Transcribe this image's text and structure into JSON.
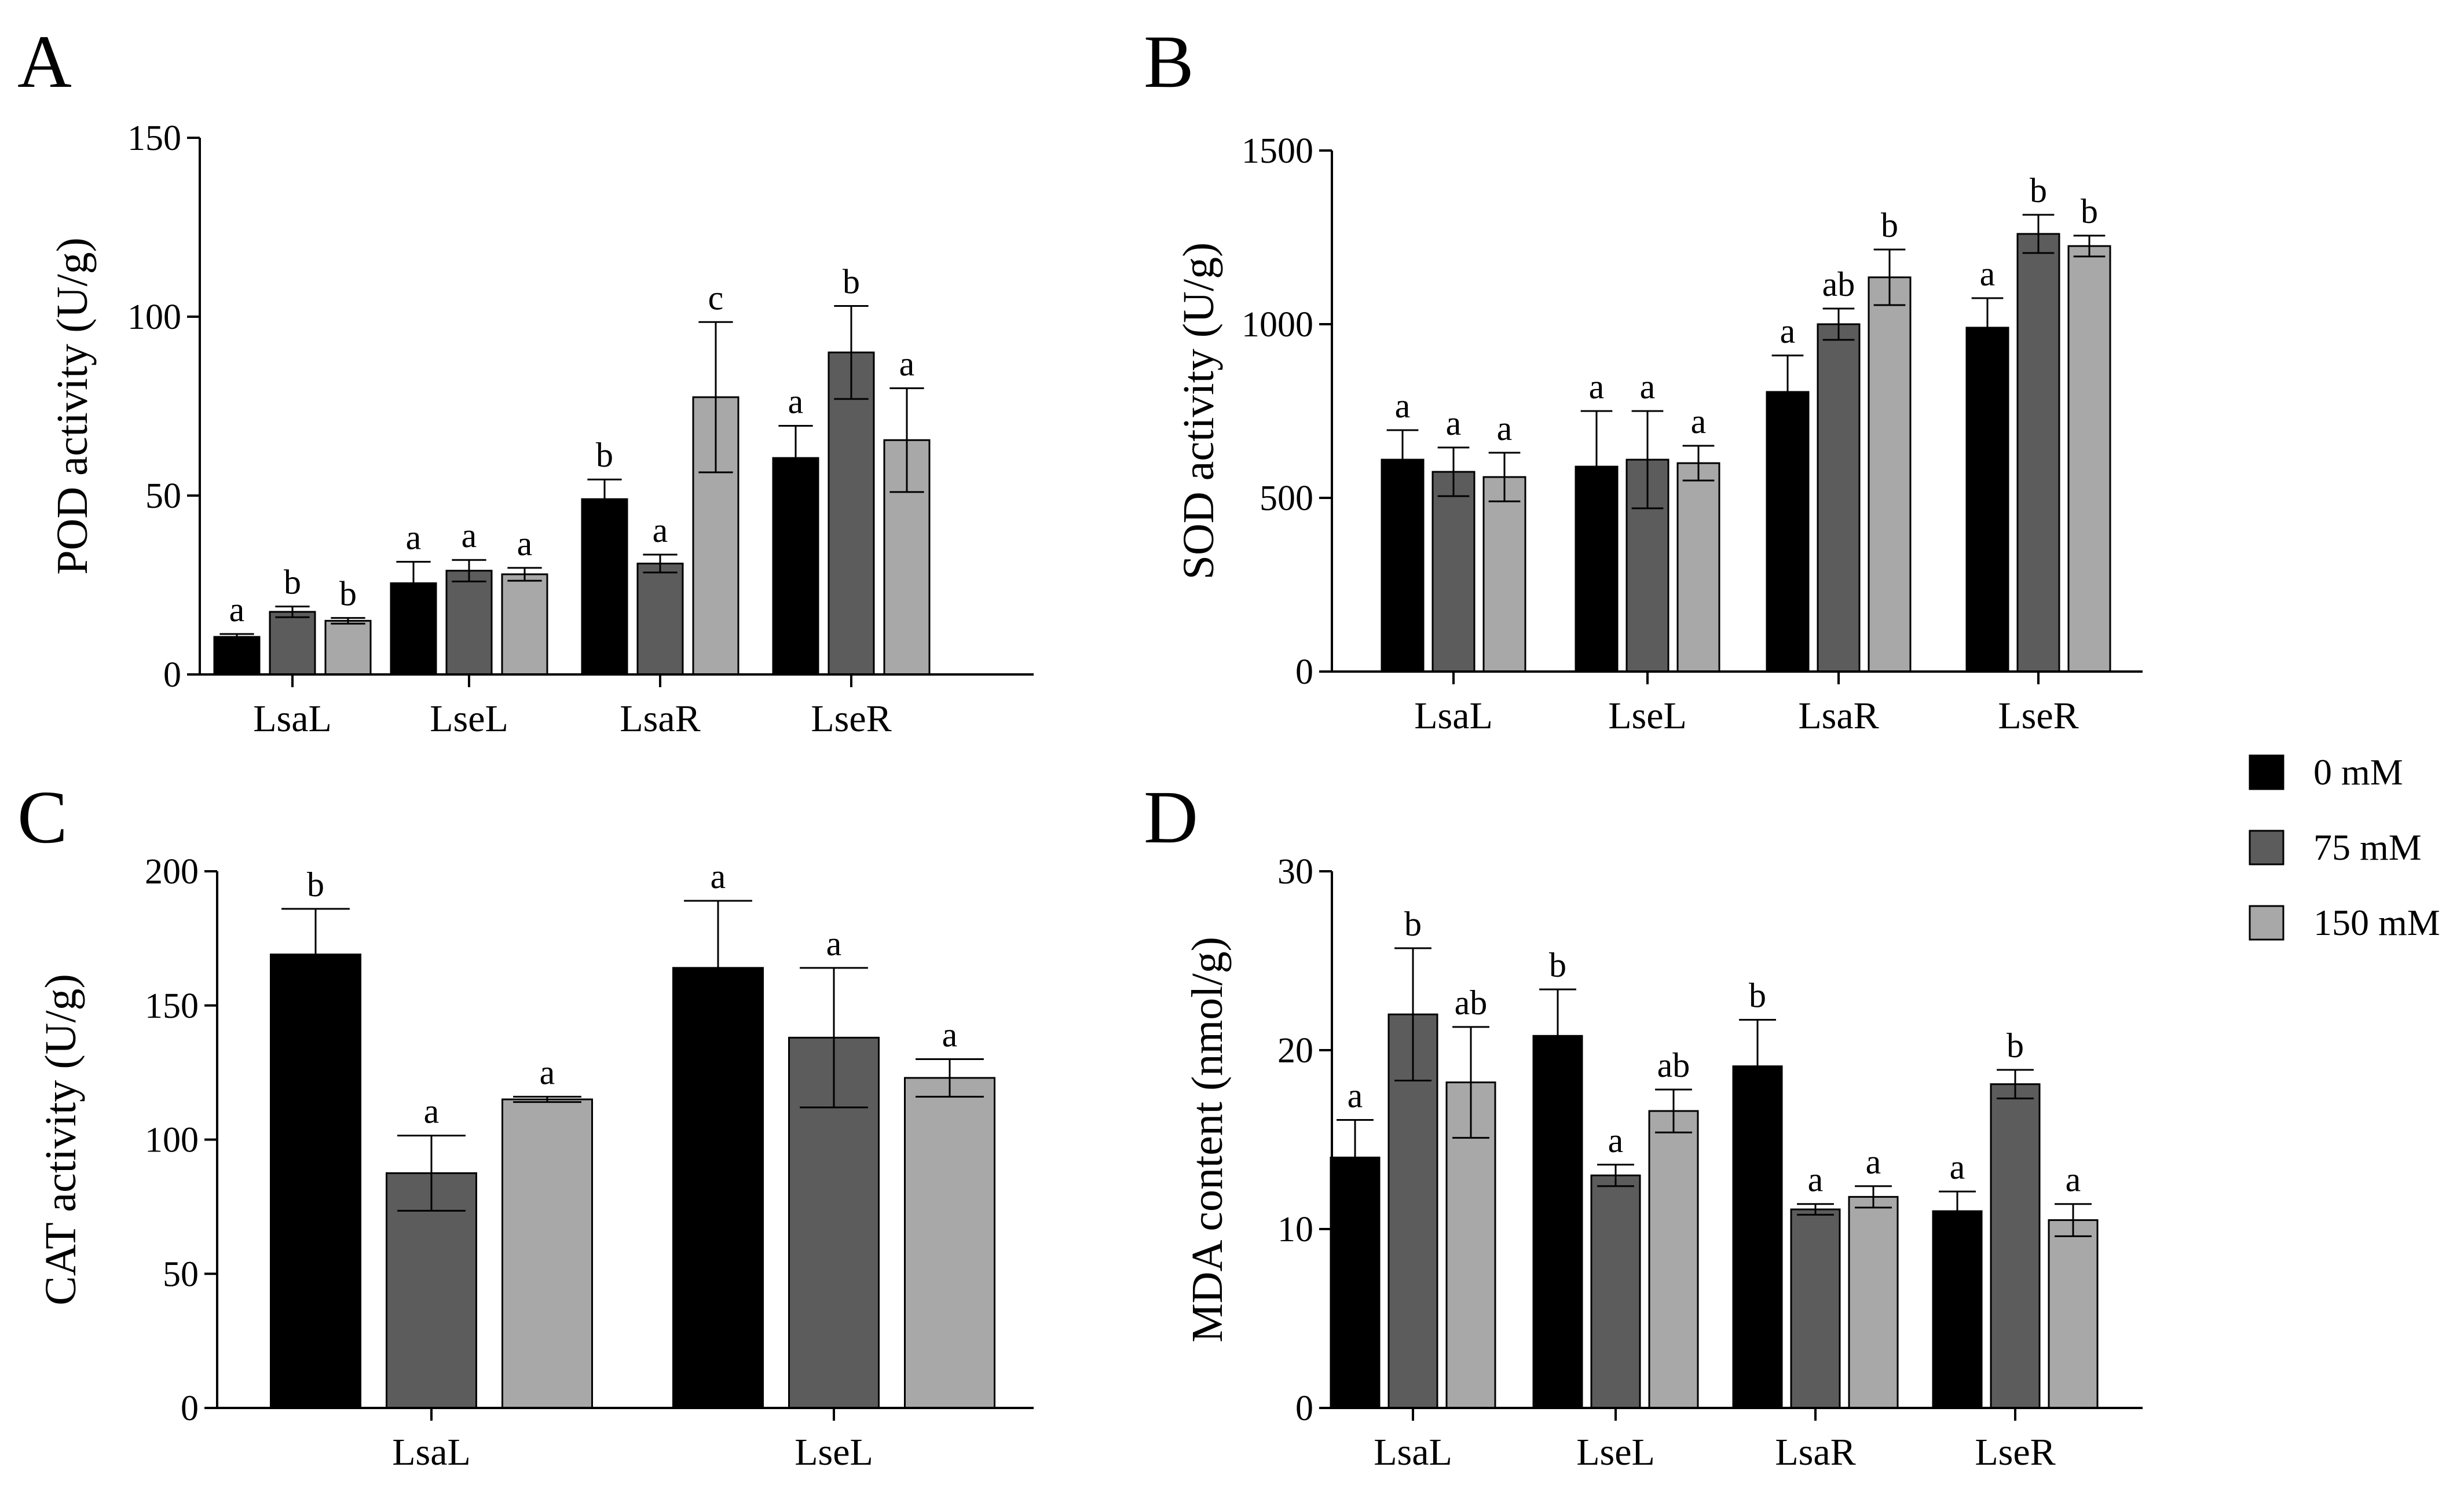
{
  "colors": {
    "s0": "#000000",
    "s1": "#5c5c5c",
    "s2": "#a8a8a8",
    "axis": "#000000"
  },
  "legend": {
    "items": [
      {
        "name": "0 mM",
        "color_key": "s0"
      },
      {
        "name": "75 mM",
        "color_key": "s1"
      },
      {
        "name": "150 mM",
        "color_key": "s2"
      }
    ]
  },
  "chart_data": [
    {
      "panel": "A",
      "type": "bar",
      "ylabel": "POD activity (U/g)",
      "ylim": [
        0,
        150
      ],
      "yticks": [
        0,
        50,
        100,
        150
      ],
      "categories": [
        "LsaL",
        "LseL",
        "LsaR",
        "LseR"
      ],
      "series": [
        {
          "name": "0 mM",
          "values": [
            10.5,
            25.5,
            49,
            60.5
          ],
          "errors": [
            0.8,
            6,
            5.5,
            9
          ],
          "sig": [
            "a",
            "a",
            "b",
            "a"
          ]
        },
        {
          "name": "75 mM",
          "values": [
            17.5,
            29,
            31,
            90
          ],
          "errors": [
            1.5,
            3,
            2.5,
            13
          ],
          "sig": [
            "b",
            "a",
            "a",
            "b"
          ]
        },
        {
          "name": "150 mM",
          "values": [
            15,
            28,
            77.5,
            65.5
          ],
          "errors": [
            0.8,
            1.8,
            21,
            14.5
          ],
          "sig": [
            "b",
            "a",
            "c",
            "a"
          ]
        }
      ]
    },
    {
      "panel": "B",
      "type": "bar",
      "ylabel": "SOD activity (U/g)",
      "ylim": [
        0,
        1500
      ],
      "yticks": [
        0,
        500,
        1000,
        1500
      ],
      "categories": [
        "LsaL",
        "LseL",
        "LsaR",
        "LseR"
      ],
      "series": [
        {
          "name": "0 mM",
          "values": [
            610,
            590,
            805,
            990
          ],
          "errors": [
            85,
            160,
            105,
            85
          ],
          "sig": [
            "a",
            "a",
            "a",
            "a"
          ]
        },
        {
          "name": "75 mM",
          "values": [
            575,
            610,
            1000,
            1260
          ],
          "errors": [
            70,
            140,
            45,
            55
          ],
          "sig": [
            "a",
            "a",
            "ab",
            "b"
          ]
        },
        {
          "name": "150 mM",
          "values": [
            560,
            600,
            1135,
            1225
          ],
          "errors": [
            70,
            50,
            80,
            30
          ],
          "sig": [
            "a",
            "a",
            "b",
            "b"
          ]
        }
      ]
    },
    {
      "panel": "C",
      "type": "bar",
      "ylabel": "CAT activity (U/g)",
      "ylim": [
        0,
        200
      ],
      "yticks": [
        0,
        50,
        100,
        150,
        200
      ],
      "categories": [
        "LsaL",
        "LseL"
      ],
      "series": [
        {
          "name": "0 mM",
          "values": [
            169,
            164
          ],
          "errors": [
            17,
            25
          ],
          "sig": [
            "b",
            "a"
          ]
        },
        {
          "name": "75 mM",
          "values": [
            87.5,
            138
          ],
          "errors": [
            14,
            26
          ],
          "sig": [
            "a",
            "a"
          ]
        },
        {
          "name": "150 mM",
          "values": [
            115,
            123
          ],
          "errors": [
            1,
            7
          ],
          "sig": [
            "a",
            "a"
          ]
        }
      ]
    },
    {
      "panel": "D",
      "type": "bar",
      "ylabel": "MDA content (nmol/g)",
      "ylim": [
        0,
        30
      ],
      "yticks": [
        0,
        10,
        20,
        30
      ],
      "categories": [
        "LsaL",
        "LseL",
        "LsaR",
        "LseR"
      ],
      "series": [
        {
          "name": "0 mM",
          "values": [
            14,
            20.8,
            19.1,
            11
          ],
          "errors": [
            2.1,
            2.6,
            2.6,
            1.1
          ],
          "sig": [
            "a",
            "b",
            "b",
            "a"
          ]
        },
        {
          "name": "75 mM",
          "values": [
            22,
            13,
            11.1,
            18.1
          ],
          "errors": [
            3.7,
            0.6,
            0.3,
            0.8
          ],
          "sig": [
            "b",
            "a",
            "a",
            "b"
          ]
        },
        {
          "name": "150 mM",
          "values": [
            18.2,
            16.6,
            11.8,
            10.5
          ],
          "errors": [
            3.1,
            1.2,
            0.6,
            0.9
          ],
          "sig": [
            "ab",
            "ab",
            "a",
            "a"
          ]
        }
      ]
    }
  ]
}
